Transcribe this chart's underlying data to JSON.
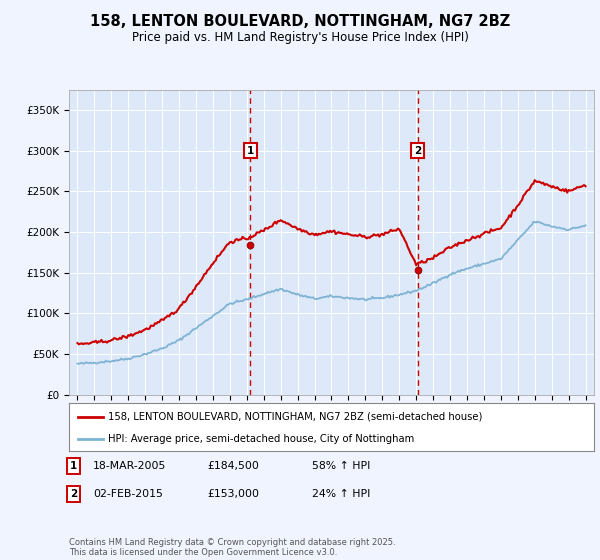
{
  "title": "158, LENTON BOULEVARD, NOTTINGHAM, NG7 2BZ",
  "subtitle": "Price paid vs. HM Land Registry's House Price Index (HPI)",
  "background_color": "#f0f4ff",
  "plot_bg_color": "#dde8f8",
  "red_color": "#cc0000",
  "blue_color": "#7fb3d3",
  "marker1_date_x": 2005.21,
  "marker2_date_x": 2015.09,
  "marker1_price": 184500,
  "marker2_price": 153000,
  "marker1_label": "1",
  "marker2_label": "2",
  "marker1_text": "18-MAR-2005",
  "marker1_amount": "£184,500",
  "marker1_hpi": "58% ↑ HPI",
  "marker2_text": "02-FEB-2015",
  "marker2_amount": "£153,000",
  "marker2_hpi": "24% ↑ HPI",
  "ylabel_ticks": [
    0,
    50000,
    100000,
    150000,
    200000,
    250000,
    300000,
    350000
  ],
  "ylabel_labels": [
    "£0",
    "£50K",
    "£100K",
    "£150K",
    "£200K",
    "£250K",
    "£300K",
    "£350K"
  ],
  "xmin": 1994.5,
  "xmax": 2025.5,
  "ymin": 0,
  "ymax": 375000,
  "legend_line1": "158, LENTON BOULEVARD, NOTTINGHAM, NG7 2BZ (semi-detached house)",
  "legend_line2": "HPI: Average price, semi-detached house, City of Nottingham",
  "footer": "Contains HM Land Registry data © Crown copyright and database right 2025.\nThis data is licensed under the Open Government Licence v3.0."
}
